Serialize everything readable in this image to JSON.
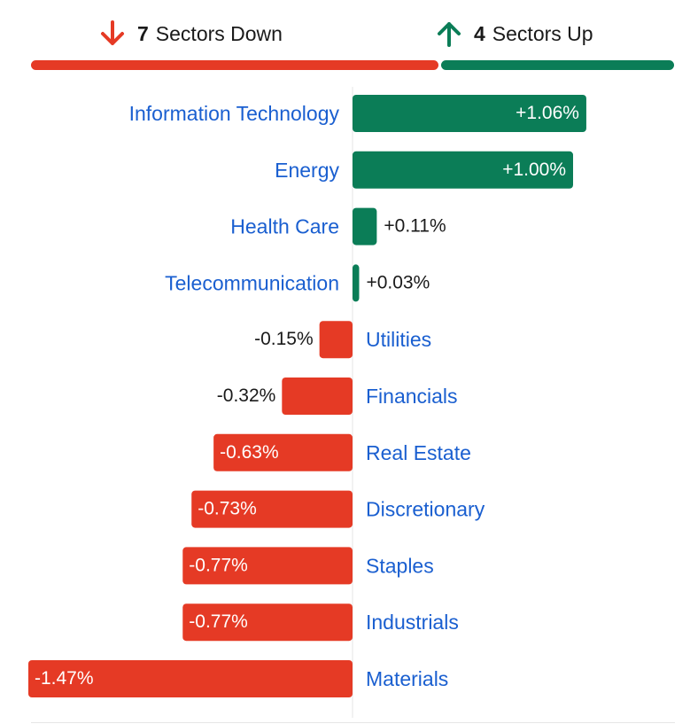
{
  "summary": {
    "down": {
      "count": "7",
      "text": "Sectors Down",
      "icon": "arrow-down-icon"
    },
    "up": {
      "count": "4",
      "text": "Sectors Up",
      "icon": "arrow-up-icon"
    }
  },
  "colors": {
    "negative": "#e53a25",
    "positive": "#0b7d57",
    "label": "#1a5fd0",
    "text": "#1a1a1a",
    "white": "#ffffff"
  },
  "chart_data": {
    "type": "bar",
    "orientation": "horizontal",
    "title": "",
    "xlabel": "",
    "ylabel": "",
    "grid": false,
    "categories": [
      "Information Technology",
      "Energy",
      "Health Care",
      "Telecommunication",
      "Utilities",
      "Financials",
      "Real Estate",
      "Discretionary",
      "Staples",
      "Industrials",
      "Materials"
    ],
    "values": [
      1.06,
      1.0,
      0.11,
      0.03,
      -0.15,
      -0.32,
      -0.63,
      -0.73,
      -0.77,
      -0.77,
      -1.47
    ],
    "value_labels": [
      "+1.06%",
      "+1.00%",
      "+0.11%",
      "+0.03%",
      "-0.15%",
      "-0.32%",
      "-0.63%",
      "-0.73%",
      "-0.77%",
      "-0.77%",
      "-1.47%"
    ]
  }
}
